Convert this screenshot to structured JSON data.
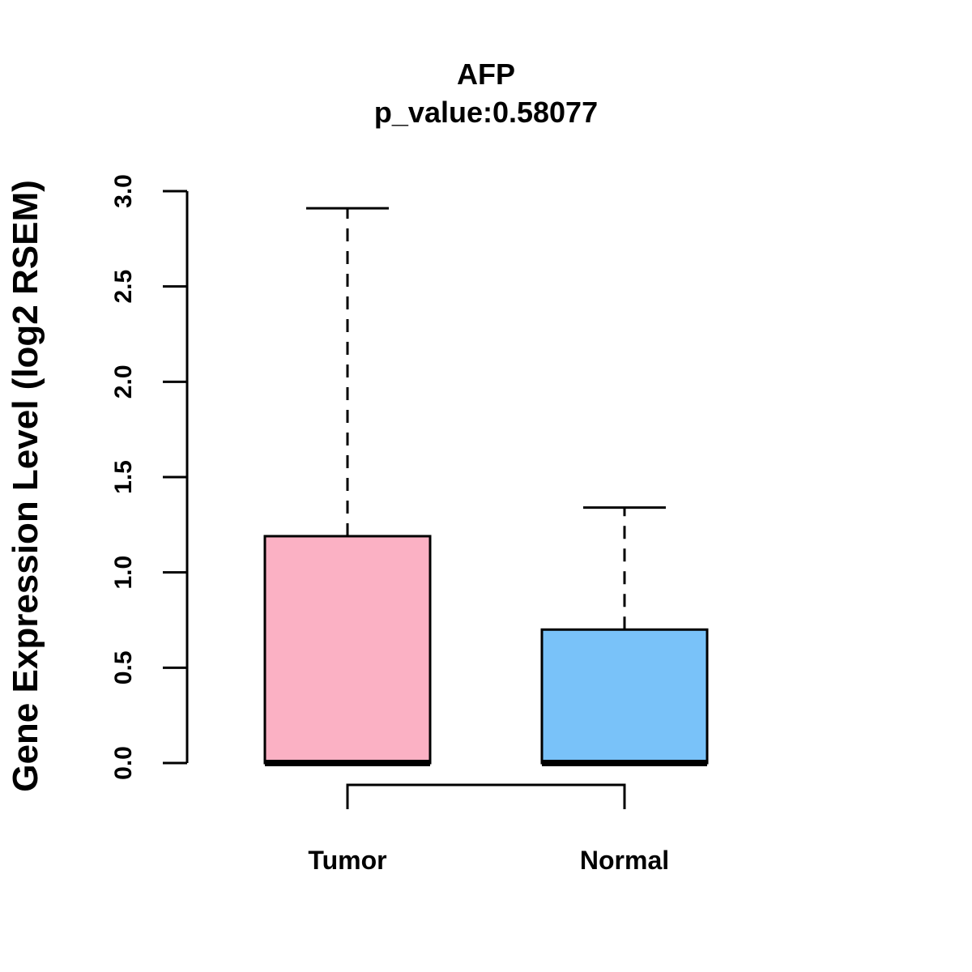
{
  "chart_data": {
    "type": "boxplot",
    "title": "AFP",
    "subtitle": "p_value:0.58077",
    "xlabel": "",
    "ylabel": "Gene Expression Level (log2 RSEM)",
    "ylim": [
      0,
      3.0
    ],
    "yticks": [
      "0.0",
      "0.5",
      "1.0",
      "1.5",
      "2.0",
      "2.5",
      "3.0"
    ],
    "ytick_values": [
      0,
      0.5,
      1.0,
      1.5,
      2.0,
      2.5,
      3.0
    ],
    "categories": [
      "Tumor",
      "Normal"
    ],
    "boxes": [
      {
        "whisker_low": 0,
        "q1": 0,
        "median": 0,
        "q3": 1.19,
        "whisker_high": 2.91,
        "color": "#FBB1C4"
      },
      {
        "whisker_low": 0,
        "q1": 0,
        "median": 0,
        "q3": 0.7,
        "whisker_high": 1.34,
        "color": "#79C2F9"
      }
    ],
    "comparison_bracket": true,
    "grid": false,
    "legend": "none"
  }
}
